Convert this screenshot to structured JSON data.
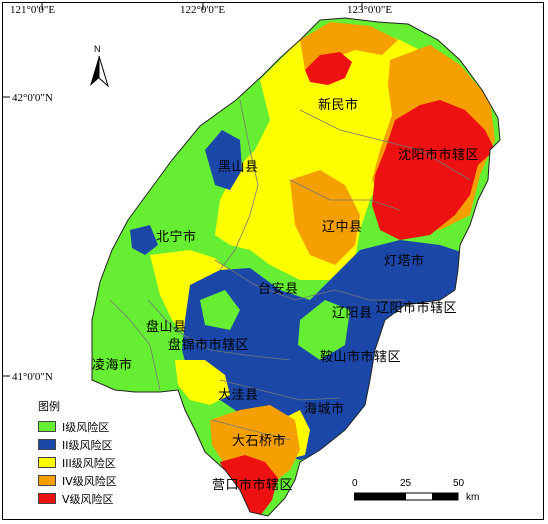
{
  "longitudes": [
    "121°0'0\"E",
    "122°0'0\"E",
    "123°0'0\"E"
  ],
  "latitudes": [
    "42°0'0\"N",
    "41°0'0\"N"
  ],
  "north_arrow": {
    "label": "N",
    "icon": "north-arrow-icon"
  },
  "places": [
    "新民市",
    "沈阳市市辖区",
    "黑山县",
    "辽中县",
    "北宁市",
    "灯塔市",
    "台安县",
    "辽阳县",
    "辽阳市市辖区",
    "盘山县",
    "盘锦市市辖区",
    "鞍山市市辖区",
    "凌海市",
    "大洼县",
    "海城市",
    "大石桥市",
    "营口市市辖区"
  ],
  "legend": {
    "title": "图例",
    "items": [
      {
        "label": "I级风险区",
        "color": "#66ee33"
      },
      {
        "label": "II级风险区",
        "color": "#1a47a8"
      },
      {
        "label": "III级风险区",
        "color": "#ffff00"
      },
      {
        "label": "IV级风险区",
        "color": "#f5a000"
      },
      {
        "label": "V级风险区",
        "color": "#ee1111"
      }
    ]
  },
  "scale": {
    "ticks": [
      "0",
      "25",
      "50"
    ],
    "unit": "km"
  }
}
